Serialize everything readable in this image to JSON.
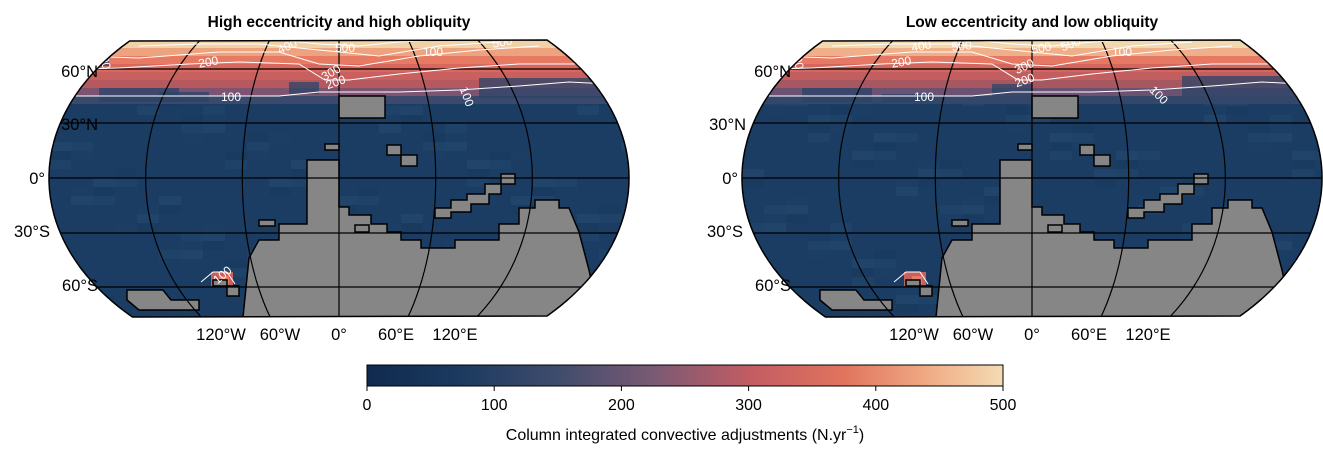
{
  "panels": [
    {
      "title": "High eccentricity and high obliquity",
      "contours": [
        {
          "level": 100,
          "label": "100"
        },
        {
          "level": 200,
          "label": "200"
        },
        {
          "level": 300,
          "label": "300"
        },
        {
          "level": 400,
          "label": "400"
        },
        {
          "level": 500,
          "label": "500"
        }
      ]
    },
    {
      "title": "Low eccentricity and low obliquity",
      "contours": [
        {
          "level": 100,
          "label": "100"
        },
        {
          "level": 200,
          "label": "200"
        },
        {
          "level": 300,
          "label": "300"
        },
        {
          "level": 400,
          "label": "400"
        },
        {
          "level": 500,
          "label": "500"
        }
      ]
    }
  ],
  "lat_labels": [
    "60°N",
    "30°N",
    "0°",
    "30°S",
    "60°S"
  ],
  "lon_labels": [
    "120°W",
    "60°W",
    "0°",
    "60°E",
    "120°E"
  ],
  "colorbar": {
    "label": "Column integrated convective adjustments (N.yr",
    "label_exponent": "−1",
    "label_close": ")",
    "ticks": [
      "0",
      "100",
      "200",
      "300",
      "400",
      "500"
    ],
    "min": 0,
    "max": 500,
    "colormap": [
      "#0f2a4e",
      "#2a4468",
      "#6e6078",
      "#b0566a",
      "#e0675a",
      "#f0a882",
      "#f1d8b0"
    ]
  },
  "colors": {
    "ocean": "#1b3d63",
    "land": "#868686",
    "coast": "#000000",
    "grid": "#000000",
    "contour": "#ffffff"
  }
}
